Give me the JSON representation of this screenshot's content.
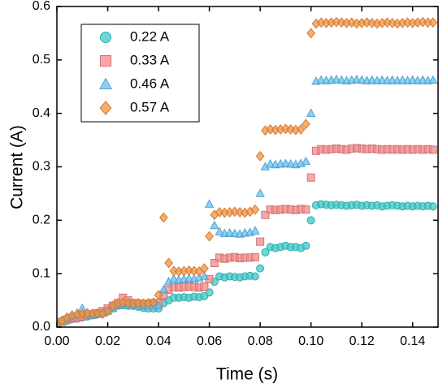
{
  "chart_data": {
    "type": "scatter",
    "xlabel": "Time (s)",
    "ylabel": "Current (A)",
    "xlim": [
      0,
      0.15
    ],
    "ylim": [
      0,
      0.6
    ],
    "xticks": [
      {
        "value": 0,
        "label": "0.00"
      },
      {
        "value": 0.02,
        "label": "0.02"
      },
      {
        "value": 0.04,
        "label": "0.04"
      },
      {
        "value": 0.06,
        "label": "0.06"
      },
      {
        "value": 0.08,
        "label": "0.08"
      },
      {
        "value": 0.1,
        "label": "0.10"
      },
      {
        "value": 0.12,
        "label": "0.12"
      },
      {
        "value": 0.14,
        "label": "0.14"
      }
    ],
    "yticks": [
      {
        "value": 0,
        "label": "0.0"
      },
      0.1,
      0.2,
      0.3,
      0.4,
      0.5,
      0.6
    ],
    "legend": "upper left",
    "x": [
      0,
      0.002,
      0.004,
      0.006,
      0.008,
      0.01,
      0.012,
      0.014,
      0.016,
      0.018,
      0.02,
      0.022,
      0.024,
      0.026,
      0.028,
      0.03,
      0.032,
      0.034,
      0.036,
      0.038,
      0.04,
      0.042,
      0.044,
      0.046,
      0.048,
      0.05,
      0.052,
      0.054,
      0.056,
      0.058,
      0.06,
      0.062,
      0.064,
      0.066,
      0.068,
      0.07,
      0.072,
      0.074,
      0.076,
      0.078,
      0.08,
      0.082,
      0.084,
      0.086,
      0.088,
      0.09,
      0.092,
      0.094,
      0.096,
      0.098,
      0.1,
      0.102,
      0.104,
      0.106,
      0.108,
      0.11,
      0.112,
      0.114,
      0.116,
      0.118,
      0.12,
      0.122,
      0.124,
      0.126,
      0.128,
      0.13,
      0.132,
      0.134,
      0.136,
      0.138,
      0.14,
      0.142,
      0.144,
      0.146,
      0.148
    ],
    "series": [
      {
        "name": "0.22 A",
        "marker": "circle",
        "color": "#3cc8c8",
        "values": [
          0.005,
          0.01,
          0.012,
          0.015,
          0.016,
          0.018,
          0.02,
          0.022,
          0.024,
          0.026,
          0.03,
          0.035,
          0.04,
          0.042,
          0.04,
          0.04,
          0.038,
          0.036,
          0.035,
          0.035,
          0.035,
          0.045,
          0.05,
          0.055,
          0.055,
          0.056,
          0.055,
          0.057,
          0.056,
          0.058,
          0.065,
          0.085,
          0.095,
          0.093,
          0.095,
          0.094,
          0.093,
          0.095,
          0.096,
          0.095,
          0.11,
          0.14,
          0.15,
          0.148,
          0.15,
          0.152,
          0.15,
          0.15,
          0.148,
          0.152,
          0.2,
          0.228,
          0.23,
          0.229,
          0.228,
          0.229,
          0.228,
          0.227,
          0.228,
          0.229,
          0.227,
          0.228,
          0.227,
          0.228,
          0.226,
          0.227,
          0.228,
          0.227,
          0.226,
          0.227,
          0.226,
          0.227,
          0.226,
          0.227,
          0.226
        ]
      },
      {
        "name": "0.33 A",
        "marker": "square",
        "color": "#f48a8a",
        "values": [
          0.005,
          0.01,
          0.014,
          0.016,
          0.018,
          0.02,
          0.022,
          0.024,
          0.026,
          0.03,
          0.035,
          0.04,
          0.045,
          0.055,
          0.05,
          0.045,
          0.044,
          0.043,
          0.044,
          0.045,
          0.045,
          0.06,
          0.07,
          0.075,
          0.074,
          0.075,
          0.076,
          0.075,
          0.074,
          0.076,
          0.09,
          0.12,
          0.13,
          0.128,
          0.13,
          0.131,
          0.129,
          0.13,
          0.13,
          0.131,
          0.16,
          0.21,
          0.22,
          0.219,
          0.22,
          0.221,
          0.22,
          0.219,
          0.221,
          0.22,
          0.28,
          0.33,
          0.333,
          0.332,
          0.333,
          0.334,
          0.333,
          0.332,
          0.334,
          0.335,
          0.334,
          0.333,
          0.334,
          0.333,
          0.332,
          0.333,
          0.332,
          0.333,
          0.332,
          0.333,
          0.332,
          0.333,
          0.332,
          0.333,
          0.332
        ]
      },
      {
        "name": "0.46 A",
        "marker": "triangle",
        "color": "#63c0f2",
        "values": [
          0.005,
          0.012,
          0.018,
          0.022,
          0.026,
          0.035,
          0.025,
          0.022,
          0.024,
          0.026,
          0.03,
          0.035,
          0.04,
          0.042,
          0.04,
          0.04,
          0.039,
          0.04,
          0.04,
          0.04,
          0.04,
          0.07,
          0.085,
          0.09,
          0.088,
          0.09,
          0.091,
          0.09,
          0.092,
          0.095,
          0.23,
          0.19,
          0.178,
          0.175,
          0.176,
          0.175,
          0.174,
          0.176,
          0.177,
          0.18,
          0.25,
          0.3,
          0.305,
          0.304,
          0.305,
          0.306,
          0.305,
          0.304,
          0.306,
          0.31,
          0.4,
          0.46,
          0.462,
          0.461,
          0.462,
          0.463,
          0.462,
          0.461,
          0.462,
          0.463,
          0.462,
          0.461,
          0.462,
          0.461,
          0.462,
          0.461,
          0.462,
          0.461,
          0.462,
          0.461,
          0.462,
          0.461,
          0.462,
          0.461,
          0.462
        ]
      },
      {
        "name": "0.57 A",
        "marker": "diamond",
        "color": "#f3913e",
        "values": [
          0.005,
          0.012,
          0.018,
          0.022,
          0.024,
          0.025,
          0.026,
          0.025,
          0.026,
          0.025,
          0.03,
          0.04,
          0.045,
          0.046,
          0.045,
          0.044,
          0.045,
          0.044,
          0.045,
          0.046,
          0.06,
          0.205,
          0.12,
          0.105,
          0.104,
          0.105,
          0.106,
          0.105,
          0.104,
          0.11,
          0.17,
          0.21,
          0.215,
          0.214,
          0.215,
          0.216,
          0.215,
          0.214,
          0.216,
          0.22,
          0.32,
          0.368,
          0.37,
          0.369,
          0.37,
          0.371,
          0.37,
          0.369,
          0.37,
          0.38,
          0.55,
          0.568,
          0.57,
          0.569,
          0.57,
          0.571,
          0.57,
          0.569,
          0.57,
          0.568,
          0.569,
          0.57,
          0.569,
          0.568,
          0.569,
          0.57,
          0.569,
          0.568,
          0.569,
          0.57,
          0.569,
          0.57,
          0.571,
          0.57,
          0.57
        ]
      }
    ]
  }
}
